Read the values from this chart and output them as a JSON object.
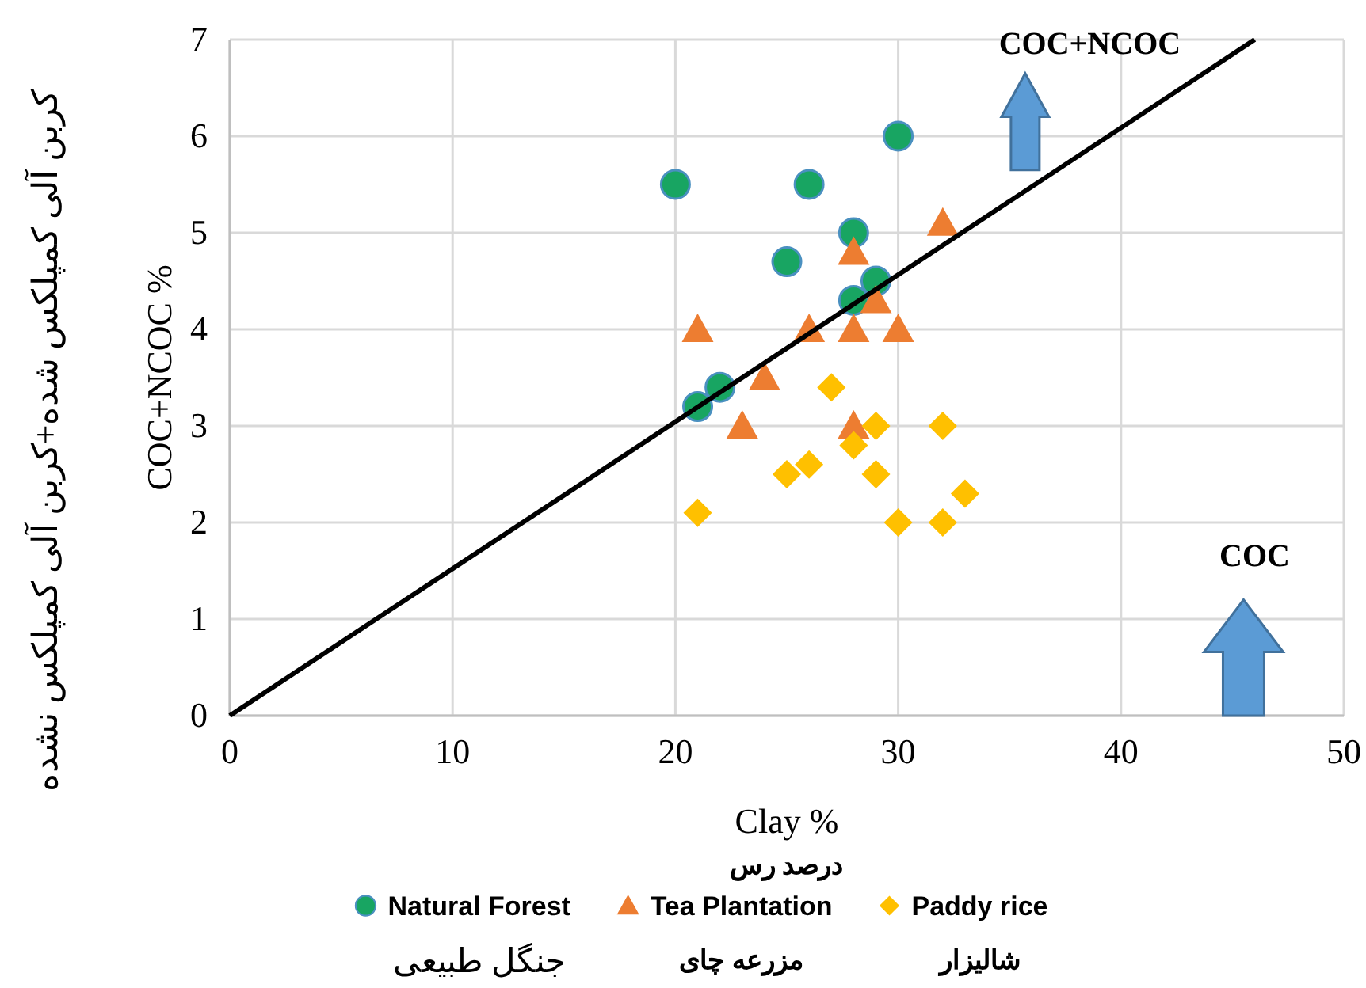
{
  "chart_data": {
    "type": "scatter",
    "xlabel": "Clay %",
    "ylabel": "COC+NCOC %",
    "annotations": [
      "COC+NCOC",
      "COC",
      "درصد رس",
      "کربن آلی کمپلکس شده+کربن آلی کمپلکس نشده",
      "جنگل طبیعی",
      "مزرعه چای",
      "شالیزار"
    ],
    "xlim": [
      0,
      50
    ],
    "xticks": [
      0,
      10,
      20,
      30,
      40,
      50
    ],
    "ylim": [
      0,
      7
    ],
    "yticks": [
      0,
      1,
      2,
      3,
      4,
      5,
      6,
      7
    ],
    "grid": true,
    "legend": "bottom",
    "series": [
      {
        "name": "Natural Forest",
        "color": "#18a562",
        "marker": "circle",
        "x": [
          20,
          26,
          30,
          28,
          25,
          29,
          28,
          22,
          21
        ],
        "values": [
          5.5,
          5.5,
          6,
          5,
          4.7,
          4.5,
          4.3,
          3.4,
          3.2
        ]
      },
      {
        "name": "Tea Plantation",
        "color": "#ed7d31",
        "marker": "triangle",
        "x": [
          21,
          26,
          28,
          30,
          28,
          29,
          32,
          24,
          23,
          28
        ],
        "values": [
          4,
          4,
          4,
          4,
          4.8,
          4.3,
          5.1,
          3.5,
          3,
          3
        ]
      },
      {
        "name": "Paddy rice",
        "color": "#ffc000",
        "marker": "diamond",
        "x": [
          27,
          29,
          32,
          28,
          26,
          25,
          29,
          21,
          30,
          32,
          33
        ],
        "values": [
          3.4,
          3,
          3,
          2.8,
          2.6,
          2.5,
          2.5,
          2.1,
          2,
          2,
          2.3
        ]
      },
      {
        "type": "line",
        "color": "#000000",
        "marker": "none",
        "line_style": "solid",
        "x": [
          0,
          46
        ],
        "values": [
          0,
          7
        ]
      }
    ]
  }
}
